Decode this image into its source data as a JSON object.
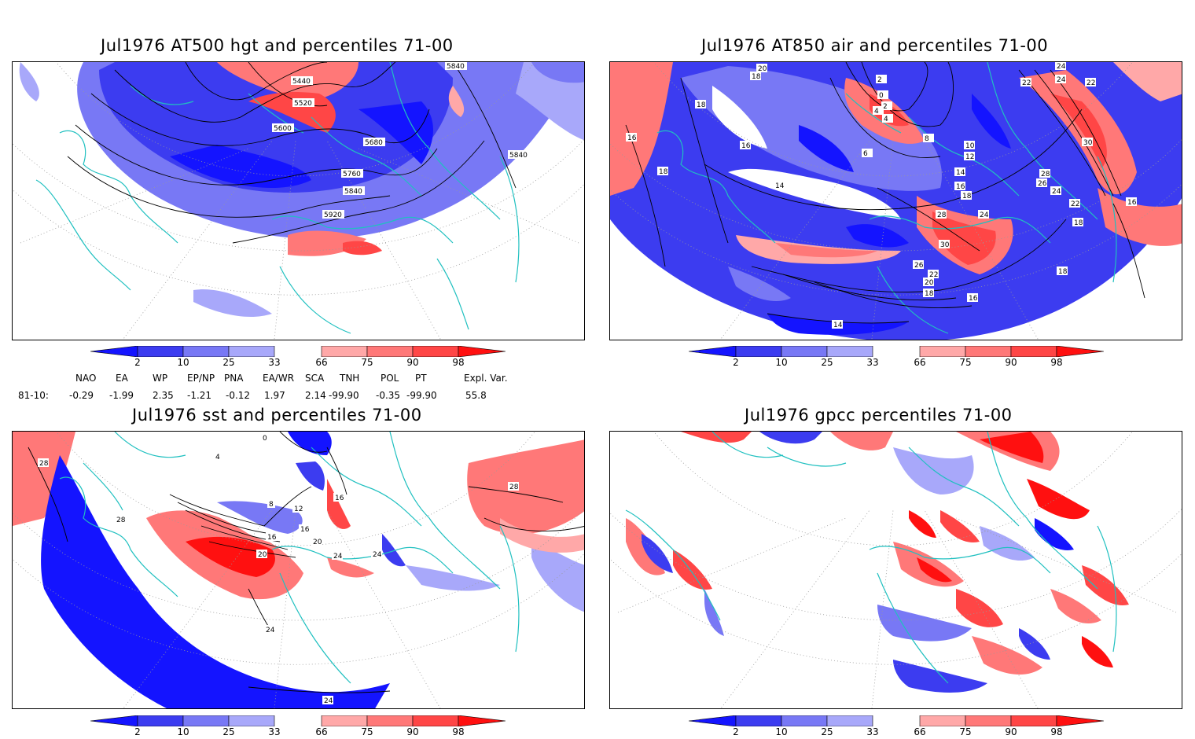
{
  "colors": {
    "blue_dark": "#1414ff",
    "blue_mid": "#3c3cf0",
    "blue_light": "#7878f5",
    "blue_pale": "#a8a8fa",
    "red_pale": "#ffa8a8",
    "red_light": "#ff7878",
    "red_mid": "#ff4646",
    "red_dark": "#ff1010",
    "coast": "#20c0c0",
    "grid": "#9a9a9a"
  },
  "colorbar": {
    "labels": [
      "2",
      "10",
      "25",
      "33",
      "66",
      "75",
      "90",
      "98"
    ]
  },
  "panels": {
    "tl": {
      "title": "Jul1976 AT500 hgt and percentiles 71-00",
      "contour_labels": [
        "5440",
        "5520",
        "5600",
        "5680",
        "5760",
        "5840",
        "5920",
        "5840",
        "5840"
      ]
    },
    "tr": {
      "title": "Jul1976 AT850 air and percentiles 71-00",
      "contour_labels": [
        "20",
        "18",
        "16",
        "18",
        "16",
        "14",
        "18",
        "14",
        "16",
        "18",
        "20",
        "22",
        "24",
        "26",
        "28",
        "30",
        "2",
        "0",
        "2",
        "4",
        "4",
        "6",
        "8",
        "10",
        "12",
        "14",
        "16",
        "18",
        "22",
        "24",
        "24",
        "22",
        "30",
        "28",
        "26",
        "24",
        "22",
        "18",
        "16",
        "18"
      ]
    },
    "bl": {
      "title": "Jul1976 sst and percentiles 71-00",
      "contour_labels": [
        "28",
        "28",
        "0",
        "4",
        "8",
        "12",
        "16",
        "20",
        "24",
        "16",
        "16",
        "20",
        "24",
        "24",
        "28",
        "24"
      ]
    },
    "br": {
      "title": "Jul1976 gpcc percentiles 71-00"
    }
  },
  "teleconnections": {
    "headers": [
      "NAO",
      "EA",
      "WP",
      "EP/NP",
      "PNA",
      "EA/WR",
      "SCA",
      "TNH",
      "POL",
      "PT",
      "Expl. Var."
    ],
    "row_label": "81-10:",
    "values": [
      "-0.29",
      "-1.99",
      "2.35",
      "-1.21",
      "-0.12",
      "1.97",
      "2.14",
      "-99.90",
      "-0.35",
      "-99.90",
      "55.8"
    ]
  }
}
